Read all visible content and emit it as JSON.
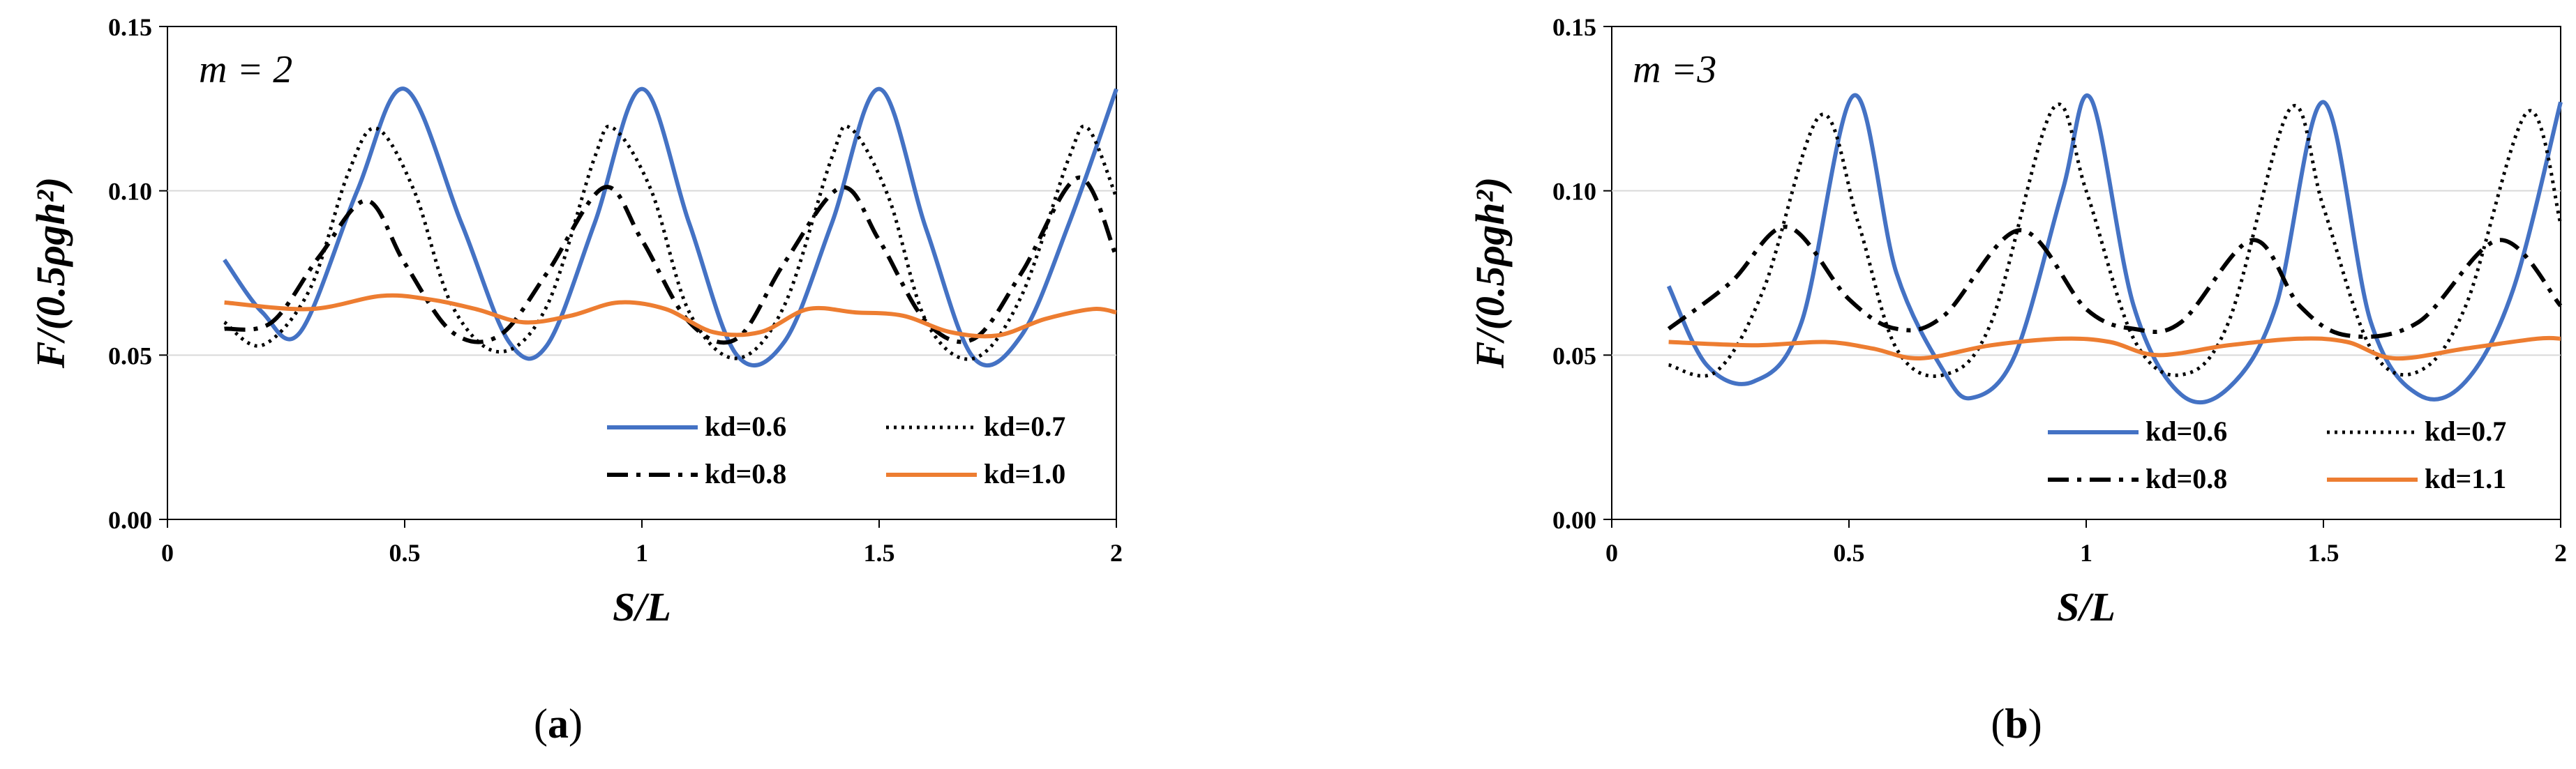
{
  "colors": {
    "kd06": "#4472C4",
    "kd07": "#000000",
    "kd08": "#000000",
    "kdlow": "#ED7D31",
    "axis": "#000000"
  },
  "chart_data": [
    {
      "type": "line",
      "panel_label": "m = 2",
      "caption_open": "(",
      "caption_letter": "a",
      "caption_close": ")",
      "xlabel": "S/L",
      "ylabel": "F/(0.5ρgh²)",
      "xlim": [
        0,
        2
      ],
      "ylim": [
        0,
        0.15
      ],
      "xticks": [
        "0",
        "0.5",
        "1",
        "1.5",
        "2"
      ],
      "xtick_values": [
        0,
        0.5,
        1,
        1.5,
        2
      ],
      "yticks": [
        "0.00",
        "0.05",
        "0.10",
        "0.15"
      ],
      "ytick_values": [
        0,
        0.05,
        0.1,
        0.15
      ],
      "legend": [
        "kd=0.6",
        "kd=0.7",
        "kd=0.8",
        "kd=1.0"
      ],
      "series": [
        {
          "name": "kd=0.6",
          "style": "solid",
          "color": "#4472C4",
          "x": [
            0.12,
            0.2,
            0.28,
            0.4,
            0.5,
            0.62,
            0.72,
            0.8,
            0.9,
            1.0,
            1.1,
            1.2,
            1.3,
            1.4,
            1.5,
            1.6,
            1.7,
            1.8,
            1.9,
            2.0
          ],
          "y": [
            0.079,
            0.063,
            0.057,
            0.1,
            0.131,
            0.09,
            0.054,
            0.053,
            0.09,
            0.131,
            0.09,
            0.05,
            0.054,
            0.09,
            0.131,
            0.088,
            0.049,
            0.056,
            0.09,
            0.131
          ]
        },
        {
          "name": "kd=0.7",
          "style": "dotted",
          "color": "#000000",
          "x": [
            0.12,
            0.2,
            0.3,
            0.38,
            0.44,
            0.52,
            0.6,
            0.7,
            0.8,
            0.9,
            0.94,
            1.02,
            1.1,
            1.2,
            1.3,
            1.4,
            1.44,
            1.52,
            1.6,
            1.7,
            1.8,
            1.9,
            1.94,
            2.0
          ],
          "y": [
            0.06,
            0.053,
            0.07,
            0.105,
            0.119,
            0.1,
            0.065,
            0.051,
            0.065,
            0.11,
            0.119,
            0.1,
            0.063,
            0.049,
            0.065,
            0.11,
            0.119,
            0.098,
            0.06,
            0.049,
            0.068,
            0.11,
            0.119,
            0.098
          ]
        },
        {
          "name": "kd=0.8",
          "style": "dashdot",
          "color": "#000000",
          "x": [
            0.12,
            0.22,
            0.32,
            0.42,
            0.5,
            0.6,
            0.7,
            0.8,
            0.92,
            1.0,
            1.1,
            1.2,
            1.3,
            1.42,
            1.5,
            1.6,
            1.7,
            1.8,
            1.92,
            2.0
          ],
          "y": [
            0.058,
            0.06,
            0.08,
            0.097,
            0.078,
            0.057,
            0.056,
            0.075,
            0.101,
            0.085,
            0.06,
            0.055,
            0.078,
            0.101,
            0.085,
            0.06,
            0.055,
            0.075,
            0.104,
            0.08
          ]
        },
        {
          "name": "kd=1.0",
          "style": "solid",
          "color": "#ED7D31",
          "x": [
            0.12,
            0.3,
            0.45,
            0.55,
            0.65,
            0.75,
            0.85,
            0.95,
            1.05,
            1.15,
            1.25,
            1.35,
            1.45,
            1.55,
            1.65,
            1.75,
            1.85,
            1.95,
            2.0
          ],
          "y": [
            0.066,
            0.064,
            0.068,
            0.067,
            0.064,
            0.06,
            0.062,
            0.066,
            0.064,
            0.057,
            0.057,
            0.064,
            0.063,
            0.062,
            0.057,
            0.056,
            0.061,
            0.064,
            0.063
          ]
        }
      ]
    },
    {
      "type": "line",
      "panel_label": "m =3",
      "caption_open": "(",
      "caption_letter": "b",
      "caption_close": ")",
      "xlabel": "S/L",
      "ylabel": "F/(0.5ρgh²)",
      "xlim": [
        0,
        2
      ],
      "ylim": [
        0,
        0.15
      ],
      "xticks": [
        "0",
        "0.5",
        "1",
        "1.5",
        "2"
      ],
      "xtick_values": [
        0,
        0.5,
        1,
        1.5,
        2
      ],
      "yticks": [
        "0.00",
        "0.05",
        "0.10",
        "0.15"
      ],
      "ytick_values": [
        0,
        0.05,
        0.1,
        0.15
      ],
      "legend": [
        "kd=0.6",
        "kd=0.7",
        "kd=0.8",
        "kd=1.1"
      ],
      "series": [
        {
          "name": "kd=0.6",
          "style": "solid",
          "color": "#4472C4",
          "x": [
            0.12,
            0.2,
            0.3,
            0.4,
            0.51,
            0.6,
            0.7,
            0.76,
            0.85,
            0.95,
            1.01,
            1.1,
            1.2,
            1.3,
            1.4,
            1.5,
            1.6,
            1.7,
            1.8,
            1.9,
            2.0
          ],
          "y": [
            0.071,
            0.047,
            0.042,
            0.06,
            0.129,
            0.075,
            0.045,
            0.037,
            0.05,
            0.1,
            0.128,
            0.065,
            0.038,
            0.04,
            0.065,
            0.127,
            0.06,
            0.038,
            0.042,
            0.07,
            0.127
          ]
        },
        {
          "name": "kd=0.7",
          "style": "dotted",
          "color": "#000000",
          "x": [
            0.12,
            0.22,
            0.32,
            0.44,
            0.52,
            0.6,
            0.7,
            0.8,
            0.93,
            1.0,
            1.1,
            1.2,
            1.3,
            1.43,
            1.5,
            1.6,
            1.7,
            1.8,
            1.93,
            2.0
          ],
          "y": [
            0.047,
            0.045,
            0.07,
            0.123,
            0.09,
            0.052,
            0.044,
            0.06,
            0.125,
            0.1,
            0.055,
            0.044,
            0.06,
            0.125,
            0.095,
            0.052,
            0.045,
            0.065,
            0.124,
            0.09
          ]
        },
        {
          "name": "kd=0.8",
          "style": "dashdot",
          "color": "#000000",
          "x": [
            0.12,
            0.25,
            0.37,
            0.5,
            0.6,
            0.7,
            0.86,
            1.0,
            1.1,
            1.2,
            1.35,
            1.45,
            1.55,
            1.7,
            1.87,
            2.0
          ],
          "y": [
            0.058,
            0.072,
            0.089,
            0.067,
            0.058,
            0.062,
            0.088,
            0.064,
            0.058,
            0.06,
            0.085,
            0.065,
            0.056,
            0.06,
            0.085,
            0.065
          ]
        },
        {
          "name": "kd=1.1",
          "style": "solid",
          "color": "#ED7D31",
          "x": [
            0.12,
            0.3,
            0.45,
            0.55,
            0.65,
            0.8,
            0.95,
            1.05,
            1.15,
            1.3,
            1.45,
            1.55,
            1.65,
            1.8,
            1.95,
            2.0
          ],
          "y": [
            0.054,
            0.053,
            0.054,
            0.052,
            0.049,
            0.053,
            0.055,
            0.054,
            0.05,
            0.053,
            0.055,
            0.054,
            0.049,
            0.052,
            0.055,
            0.055
          ]
        }
      ]
    }
  ]
}
